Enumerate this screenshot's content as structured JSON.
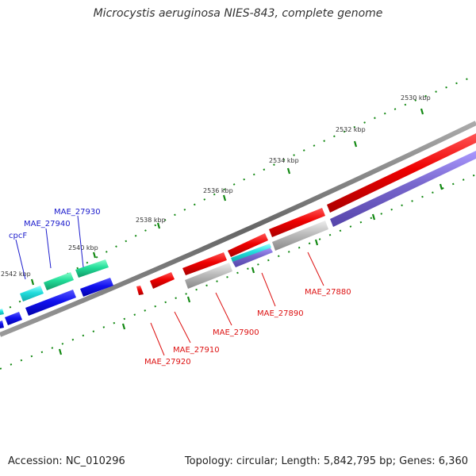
{
  "header": {
    "title": "Microcystis aeruginosa NIES-843, complete genome"
  },
  "footer": {
    "accession": "Accession: NC_010296",
    "topology": "Topology: circular; Length: 5,842,795 bp; Genes: 6,360"
  },
  "colors": {
    "backbone": "#777777",
    "tick": "#118811",
    "red": "#ee1111",
    "blue": "#1111ee",
    "cyan": "#22dddd",
    "teal": "#22dd99",
    "gray": "#bbbbbb",
    "slate": "#7766cc",
    "label_red": "#dd1111",
    "label_blue": "#1a1acc"
  },
  "scale_labels": [
    "2530 kbp",
    "2532 kbp",
    "2534 kbp",
    "2536 kbp",
    "2538 kbp",
    "2540 kbp",
    "2542 kbp"
  ],
  "gene_labels": {
    "left": [
      "MAE_27930",
      "MAE_27940",
      "cpcF"
    ],
    "right": [
      "MAE_27880",
      "MAE_27890",
      "MAE_27900",
      "MAE_27910",
      "MAE_27920"
    ]
  }
}
